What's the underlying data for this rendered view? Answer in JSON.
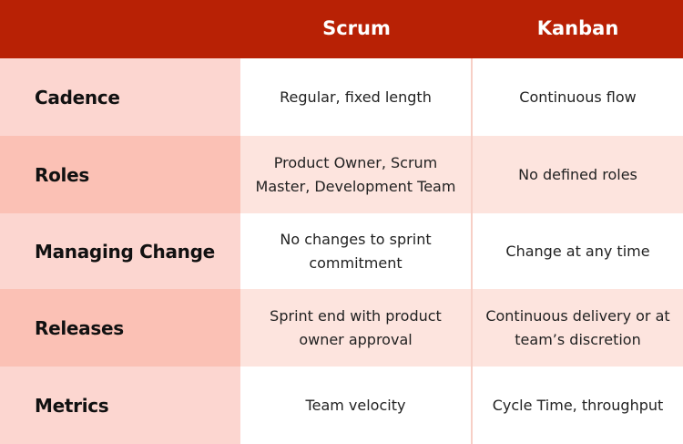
{
  "header": {
    "columns": [
      "Scrum",
      "Kanban"
    ]
  },
  "table": {
    "rows": [
      {
        "label": "Cadence",
        "cells": [
          "Regular, fixed length",
          "Continuous flow"
        ]
      },
      {
        "label": "Roles",
        "cells": [
          "Product Owner, Scrum Master, Development Team",
          "No defined roles"
        ]
      },
      {
        "label": "Managing Change",
        "cells": [
          "No changes to sprint commitment",
          "Change at any time"
        ]
      },
      {
        "label": "Releases",
        "cells": [
          "Sprint end with product owner approval",
          "Continuous delivery or at team’s discretion"
        ]
      },
      {
        "label": "Metrics",
        "cells": [
          "Team velocity",
          "Cycle Time, throughput"
        ]
      }
    ]
  }
}
